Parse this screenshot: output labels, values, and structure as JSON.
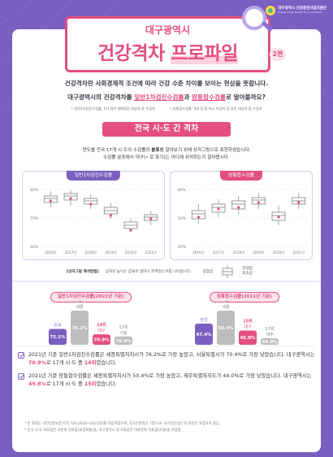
{
  "logo": {
    "name": "대구광역시",
    "subtitle": "건강증진사업지원단",
    "sub_en": "Daegu Public Health Policy Institute"
  },
  "header": {
    "sub_title": "대구광역시",
    "title_part1": "건강격차",
    "title_part2": "프로파일",
    "edition": "2편"
  },
  "intro": {
    "line1": "건강격차란 사회경제적 조건에 따라 건강 수준 차이를 보이는 현상을 뜻합니다.",
    "line2_a": "대구광역시의 건강격차를 ",
    "line2_hl1": "일반1차검진수검률",
    "line2_b": "과 ",
    "line2_hl2": "암통합수검률",
    "line2_c": "로 알아볼까요?",
    "note1": "• 일반1차검진수검률: 1차 일반·생애검진 대상자 중 수검자",
    "note2": "• 암통합수검률: 5대 암 중 하나 이상의 암 검진 대상자 중 수검자"
  },
  "section": {
    "title": "전국 시·도 간 격차",
    "desc_a": "연도별 전국 17개 시·도의 수검률의 ",
    "desc_b": "분포",
    "desc_c": "를 알아보기 위해 상자그림으로 표현하였습니다.",
    "desc2": "수검률 분포에서 대구(• 로 표기)는 어디에 위치하는지 알아봅시다."
  },
  "boxplots": {
    "left_title": "일반1차검진수검률",
    "right_title": "암통합수검률",
    "years": [
      "2016년",
      "2017년",
      "2018년",
      "2019년",
      "2020년",
      "2021년"
    ],
    "left_axis": [
      "80%",
      "70%",
      "60%"
    ],
    "right_axis": [
      "60%",
      "50%",
      "40%"
    ]
  },
  "legend": {
    "label": "[상자그림 해석방법]",
    "text": "상자의 높이는 값들이 얼마나 퍼져있는지를 나타냅니다.",
    "median": "중앙값",
    "max": "최댓값",
    "min": "최솟값"
  },
  "chart_data": [
    {
      "type": "bar",
      "title": "일반1차검진수검률(2021년 기준)",
      "categories": [
        "전국",
        "세종",
        "대구",
        "서울"
      ],
      "ranks": [
        "",
        "1위",
        "14위",
        "17위"
      ],
      "values": [
        72.1,
        76.2,
        70.9,
        70.4
      ],
      "value_labels": [
        "72.1%",
        "76.2%",
        "70.9%",
        "70.4%"
      ]
    },
    {
      "type": "bar",
      "title": "암통합수검률(2021년 기준)",
      "categories": [
        "전국",
        "세종",
        "대구",
        "제주"
      ],
      "ranks": [
        "",
        "1위",
        "15위",
        "17위"
      ],
      "values": [
        47.4,
        50.4,
        45.8,
        44.0
      ],
      "value_labels": [
        "47.4%",
        "50.4%",
        "45.8%",
        "44.0%"
      ]
    }
  ],
  "summary": {
    "s1_a": "2021년 기준 일반1차검진수검률은 세종특별자치시가 76.2%로 가장 높았고, 서울특별시가 70.4%로 가장 낮았습니다. 대구광역시는 ",
    "s1_b": "70.9%",
    "s1_c": "로 17개 시·도 중 ",
    "s1_d": "14위",
    "s1_e": "였습니다.",
    "s2_a": "2021년 기준 암통합수검률은 세종특별자치시가 50.4%로 가장 높았고, 제주특별자치도가 44.0%로 가장 낮았습니다. 대구광역시는 ",
    "s2_b": "45.8%",
    "s2_c": "로 17개 시·도 중 ",
    "s2_d": "15위",
    "s2_e": "였습니다."
  },
  "footnotes": {
    "f1": "* 본 자료는 국민건강보험 지역 지표(2016~2021년)를 이용하였으며, 국가건강검진 기준으로 국가건강검진 외 검진은 포함되지 않음.",
    "f2": "* 전국 시·도 지표값은 표준화 지표값(표준화율)을, 대구광역시 내 지표값은 비표준화 지표값(조율)을 사용함."
  },
  "colors": {
    "purple": "#7b5fc0",
    "pink": "#e44f80",
    "gray": "#bdbdbd"
  }
}
